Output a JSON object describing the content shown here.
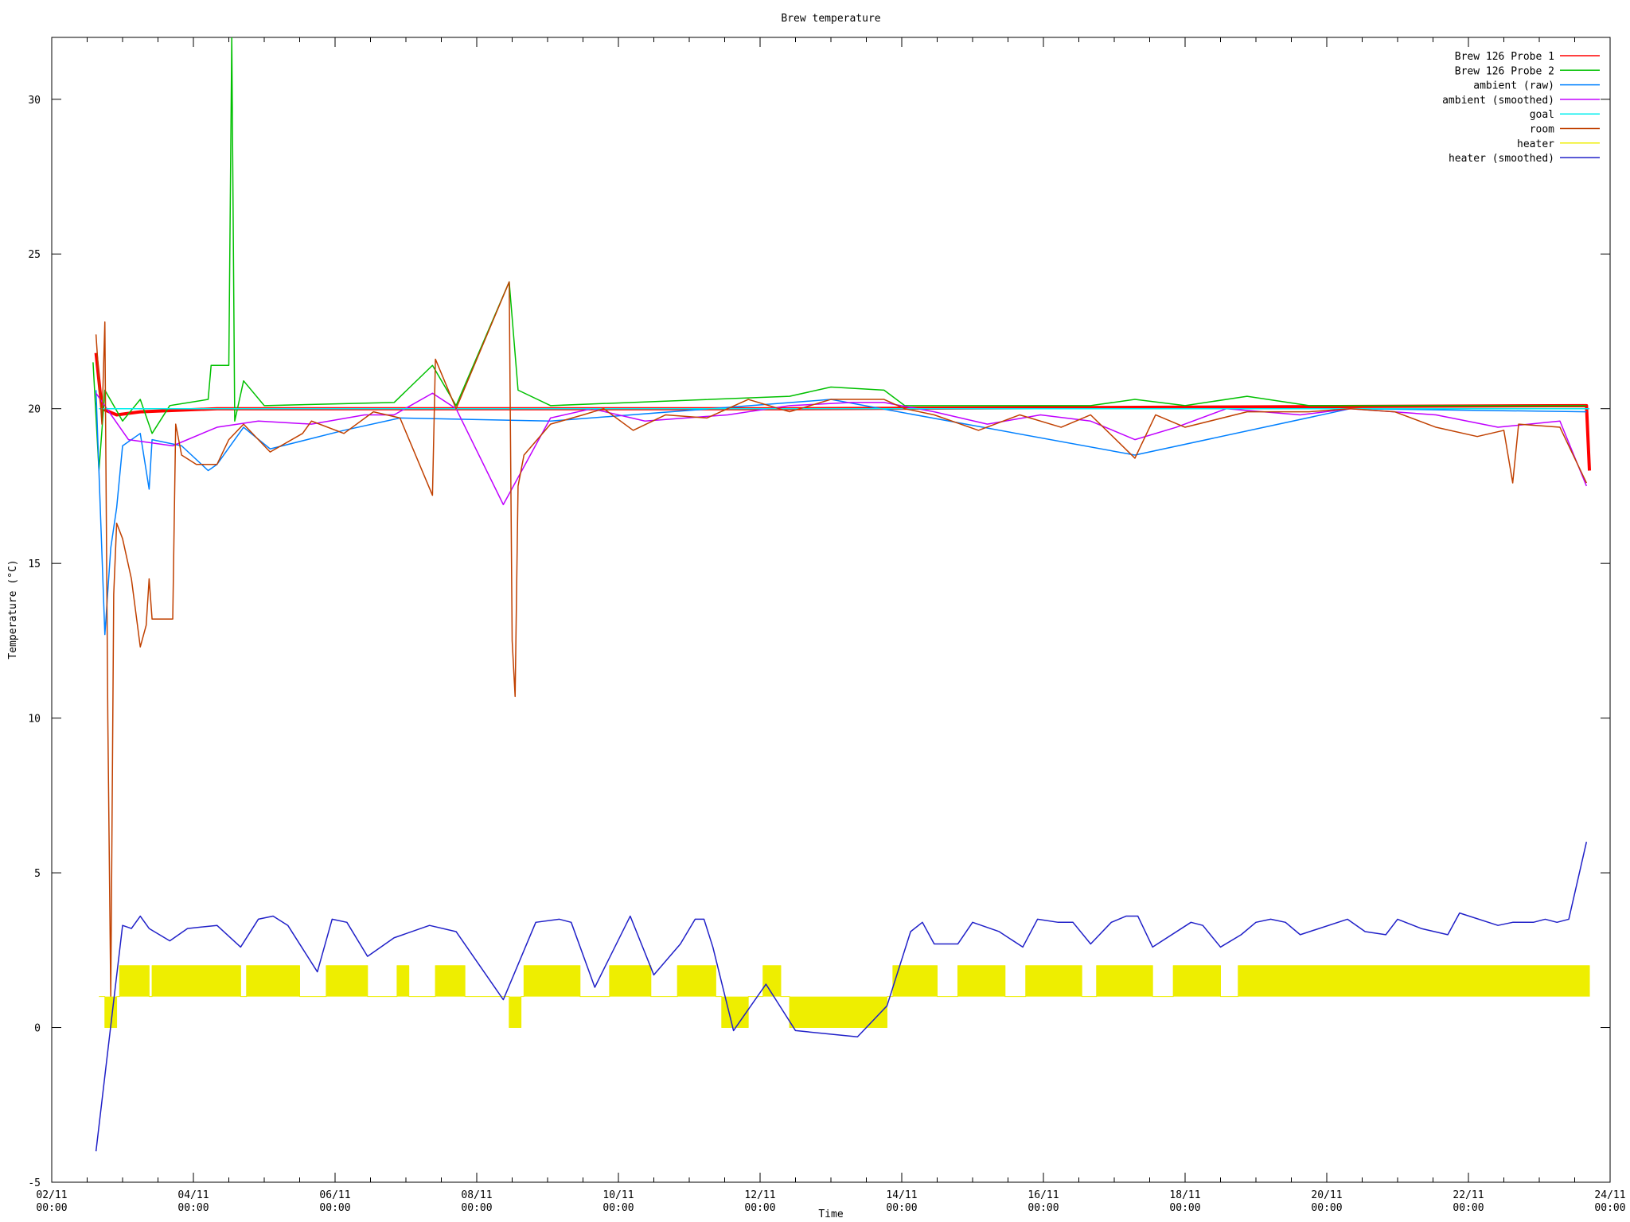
{
  "chart_data": {
    "type": "line",
    "title": "Brew temperature",
    "xlabel": "Time",
    "ylabel": "Temperature (°C)",
    "xlim": [
      "02/11 00:00",
      "24/11 00:00"
    ],
    "xticks": [
      "02/11 00:00",
      "04/11 00:00",
      "06/11 00:00",
      "08/11 00:00",
      "10/11 00:00",
      "12/11 00:00",
      "14/11 00:00",
      "16/11 00:00",
      "18/11 00:00",
      "20/11 00:00",
      "22/11 00:00",
      "24/11 00:00"
    ],
    "ylim": [
      -5,
      32
    ],
    "yticks": [
      -5,
      0,
      5,
      10,
      15,
      20,
      25,
      30
    ],
    "legend": "top-right",
    "series": [
      {
        "name": "Brew 126 Probe 1",
        "color": "#ff0000",
        "width": 4,
        "x": [
          "02/11 15:00",
          "02/11 17:00",
          "02/11 22:00",
          "03/11 06:00",
          "04/11 08:00",
          "12/11 10:00",
          "23/11 16:00",
          "23/11 17:00"
        ],
        "values": [
          21.8,
          20.0,
          19.8,
          19.9,
          20.0,
          20.0,
          20.1,
          18.0
        ]
      },
      {
        "name": "Brew 126 Probe 2",
        "color": "#00c000",
        "width": 1.5,
        "x": [
          "02/11 14:00",
          "02/11 16:00",
          "02/11 18:00",
          "03/11 00:00",
          "03/11 06:00",
          "03/11 10:00",
          "03/11 16:00",
          "04/11 05:00",
          "04/11 06:00",
          "04/11 12:00",
          "04/11 13:00",
          "04/11 14:00",
          "04/11 17:00",
          "05/11 00:00",
          "06/11 20:00",
          "07/11 09:00",
          "07/11 17:00",
          "08/11 11:00",
          "08/11 14:00",
          "09/11 01:00",
          "12/11 10:00",
          "13/11 00:00",
          "13/11 18:00",
          "14/11 01:00",
          "16/11 16:00",
          "17/11 07:00",
          "18/11 00:00",
          "18/11 21:00",
          "19/11 18:00",
          "23/11 16:00"
        ],
        "values": [
          21.5,
          18.0,
          20.6,
          19.6,
          20.3,
          19.2,
          20.1,
          20.3,
          21.4,
          21.4,
          32,
          19.6,
          20.9,
          20.1,
          20.2,
          21.4,
          20.1,
          24.1,
          20.6,
          20.1,
          20.4,
          20.7,
          20.6,
          20.1,
          20.1,
          20.3,
          20.1,
          20.4,
          20.1,
          20.1
        ]
      },
      {
        "name": "ambient (raw)",
        "color": "#0080ff",
        "width": 1.5,
        "x": [
          "02/11 15:00",
          "02/11 18:00",
          "02/11 20:00",
          "02/11 22:00",
          "03/11 00:00",
          "03/11 06:00",
          "03/11 09:00",
          "03/11 10:00",
          "03/11 20:00",
          "04/11 05:00",
          "04/11 08:00",
          "04/11 17:00",
          "05/11 02:00",
          "06/11 03:00",
          "06/11 22:00",
          "09/11 01:00",
          "13/11 00:00",
          "17/11 07:00",
          "20/11 08:00",
          "23/11 16:00"
        ],
        "values": [
          20.6,
          12.7,
          15.5,
          16.8,
          18.8,
          19.2,
          17.4,
          19.0,
          18.8,
          18.0,
          18.2,
          19.4,
          18.7,
          19.3,
          19.7,
          19.6,
          20.3,
          18.5,
          20.0,
          19.9
        ]
      },
      {
        "name": "ambient (smoothed)",
        "color": "#c000ff",
        "width": 1.5,
        "x": [
          "02/11 15:00",
          "03/11 02:00",
          "03/11 17:00",
          "04/11 08:00",
          "04/11 22:00",
          "05/11 16:00",
          "06/11 10:00",
          "06/11 20:00",
          "07/11 09:00",
          "07/11 17:00",
          "08/11 09:00",
          "09/11 01:00",
          "09/11 15:00",
          "10/11 09:00",
          "11/11 13:00",
          "12/11 10:00",
          "13/11 07:00",
          "13/11 18:00",
          "14/11 11:00",
          "15/11 05:00",
          "15/11 23:00",
          "16/11 16:00",
          "17/11 07:00",
          "17/11 21:00",
          "18/11 14:00",
          "19/11 15:00",
          "20/11 08:00",
          "21/11 13:00",
          "22/11 10:00",
          "23/11 07:00",
          "23/11 16:00"
        ],
        "values": [
          20.5,
          19.0,
          18.8,
          19.4,
          19.6,
          19.5,
          19.8,
          19.8,
          20.5,
          20.0,
          16.9,
          19.7,
          20.0,
          19.6,
          19.8,
          20.1,
          20.2,
          20.2,
          19.9,
          19.5,
          19.8,
          19.6,
          19.0,
          19.4,
          20.0,
          19.8,
          20.0,
          19.8,
          19.4,
          19.6,
          17.5
        ]
      },
      {
        "name": "goal",
        "color": "#00eeee",
        "width": 1.5,
        "x": [
          "02/11 16:00",
          "23/11 17:00"
        ],
        "values": [
          20,
          20
        ]
      },
      {
        "name": "room",
        "color": "#c04000",
        "width": 1.5,
        "x": [
          "02/11 15:00",
          "02/11 17:00",
          "02/11 18:00",
          "02/11 19:00",
          "02/11 20:00",
          "02/11 21:00",
          "02/11 22:00",
          "03/11 00:00",
          "03/11 03:00",
          "03/11 06:00",
          "03/11 08:00",
          "03/11 09:00",
          "03/11 10:00",
          "03/11 17:00",
          "03/11 18:00",
          "03/11 20:00",
          "04/11 01:00",
          "04/11 08:00",
          "04/11 12:00",
          "04/11 17:00",
          "05/11 02:00",
          "05/11 13:00",
          "05/11 16:00",
          "06/11 03:00",
          "06/11 13:00",
          "06/11 22:00",
          "07/11 09:00",
          "07/11 10:00",
          "07/11 17:00",
          "08/11 11:00",
          "08/11 12:00",
          "08/11 13:00",
          "08/11 14:00",
          "08/11 16:00",
          "09/11 01:00",
          "09/11 12:00",
          "09/11 19:00",
          "10/11 05:00",
          "10/11 16:00",
          "11/11 06:00",
          "11/11 20:00",
          "12/11 10:00",
          "13/11 00:00",
          "13/11 18:00",
          "14/11 01:00",
          "14/11 11:00",
          "15/11 02:00",
          "15/11 16:00",
          "16/11 06:00",
          "16/11 16:00",
          "17/11 07:00",
          "17/11 14:00",
          "18/11 00:00",
          "18/11 21:00",
          "19/11 18:00",
          "20/11 08:00",
          "20/11 23:00",
          "21/11 13:00",
          "22/11 03:00",
          "22/11 12:00",
          "22/11 15:00",
          "22/11 17:00",
          "23/11 07:00",
          "23/11 16:00"
        ],
        "values": [
          22.4,
          19.5,
          22.8,
          10,
          1.0,
          14,
          16.3,
          15.8,
          14.5,
          12.3,
          13.0,
          14.5,
          13.2,
          13.2,
          19.5,
          18.5,
          18.2,
          18.2,
          19.0,
          19.5,
          18.6,
          19.2,
          19.6,
          19.2,
          19.9,
          19.7,
          17.2,
          21.6,
          20.0,
          24.1,
          12.5,
          10.7,
          17.5,
          18.5,
          19.5,
          19.8,
          20.0,
          19.3,
          19.8,
          19.7,
          20.3,
          19.9,
          20.3,
          20.3,
          20.0,
          19.8,
          19.3,
          19.8,
          19.4,
          19.8,
          18.4,
          19.8,
          19.4,
          19.9,
          19.9,
          20.0,
          19.9,
          19.4,
          19.1,
          19.3,
          17.6,
          19.5,
          19.4,
          17.6
        ]
      },
      {
        "name": "heater",
        "color": "#eeee00",
        "width": 1,
        "step": true,
        "fill_to": 1,
        "x": [
          "02/11 16:00",
          "02/11 18:00",
          "02/11 22:00",
          "02/11 23:00",
          "03/11 09:00",
          "03/11 10:00",
          "04/11 16:00",
          "04/11 18:00",
          "05/11 12:00",
          "05/11 21:00",
          "06/11 11:00",
          "06/11 21:00",
          "07/11 01:00",
          "07/11 10:00",
          "07/11 20:00",
          "08/11 11:00",
          "08/11 15:00",
          "08/11 16:00",
          "09/11 11:00",
          "09/11 21:00",
          "10/11 11:00",
          "10/11 20:00",
          "11/11 09:00",
          "11/11 11:00",
          "11/11 20:00",
          "12/11 01:00",
          "12/11 07:00",
          "12/11 10:00",
          "13/11 19:00",
          "13/11 21:00",
          "14/11 12:00",
          "14/11 19:00",
          "15/11 11:00",
          "15/11 18:00",
          "16/11 13:00",
          "16/11 18:00",
          "17/11 13:00",
          "17/11 20:00",
          "18/11 12:00",
          "18/11 18:00",
          "23/11 17:00"
        ],
        "values": [
          1,
          0,
          1,
          2,
          1,
          2,
          1,
          2,
          1,
          2,
          1,
          2,
          1,
          2,
          1,
          0,
          1,
          2,
          1,
          2,
          1,
          2,
          1,
          0,
          1,
          2,
          1,
          0,
          1,
          2,
          1,
          2,
          1,
          2,
          1,
          2,
          1,
          2,
          1,
          2,
          1
        ]
      },
      {
        "name": "heater (smoothed)",
        "color": "#2020c8",
        "width": 1.5,
        "x": [
          "02/11 15:00",
          "03/11 00:00",
          "03/11 03:00",
          "03/11 06:00",
          "03/11 09:00",
          "03/11 16:00",
          "03/11 22:00",
          "04/11 08:00",
          "04/11 16:00",
          "04/11 22:00",
          "05/11 03:00",
          "05/11 08:00",
          "05/11 18:00",
          "05/11 23:00",
          "06/11 04:00",
          "06/11 11:00",
          "06/11 20:00",
          "07/11 08:00",
          "07/11 17:00",
          "08/11 09:00",
          "08/11 20:00",
          "09/11 04:00",
          "09/11 08:00",
          "09/11 16:00",
          "10/11 04:00",
          "10/11 12:00",
          "10/11 21:00",
          "11/11 02:00",
          "11/11 05:00",
          "11/11 08:00",
          "11/11 15:00",
          "12/11 02:00",
          "12/11 12:00",
          "13/11 09:00",
          "13/11 19:00",
          "14/11 03:00",
          "14/11 07:00",
          "14/11 11:00",
          "14/11 19:00",
          "15/11 00:00",
          "15/11 09:00",
          "15/11 17:00",
          "15/11 22:00",
          "16/11 05:00",
          "16/11 10:00",
          "16/11 16:00",
          "16/11 23:00",
          "17/11 04:00",
          "17/11 08:00",
          "17/11 13:00",
          "18/11 02:00",
          "18/11 06:00",
          "18/11 12:00",
          "18/11 19:00",
          "19/11 00:00",
          "19/11 05:00",
          "19/11 10:00",
          "19/11 15:00",
          "20/11 07:00",
          "20/11 13:00",
          "20/11 20:00",
          "21/11 00:00",
          "21/11 08:00",
          "21/11 17:00",
          "21/11 21:00",
          "22/11 10:00",
          "22/11 15:00",
          "22/11 22:00",
          "23/11 02:00",
          "23/11 06:00",
          "23/11 10:00",
          "23/11 16:00"
        ],
        "values": [
          -4.0,
          3.3,
          3.2,
          3.6,
          3.2,
          2.8,
          3.2,
          3.3,
          2.6,
          3.5,
          3.6,
          3.3,
          1.8,
          3.5,
          3.4,
          2.3,
          2.9,
          3.3,
          3.1,
          0.9,
          3.4,
          3.5,
          3.4,
          1.3,
          3.6,
          1.7,
          2.7,
          3.5,
          3.5,
          2.6,
          -0.1,
          1.4,
          -0.1,
          -0.3,
          0.7,
          3.1,
          3.4,
          2.7,
          2.7,
          3.4,
          3.1,
          2.6,
          3.5,
          3.4,
          3.4,
          2.7,
          3.4,
          3.6,
          3.6,
          2.6,
          3.4,
          3.3,
          2.6,
          3.0,
          3.4,
          3.5,
          3.4,
          3.0,
          3.5,
          3.1,
          3.0,
          3.5,
          3.2,
          3.0,
          3.7,
          3.3,
          3.4,
          3.4,
          3.5,
          3.4,
          3.5,
          6.0
        ]
      }
    ]
  }
}
